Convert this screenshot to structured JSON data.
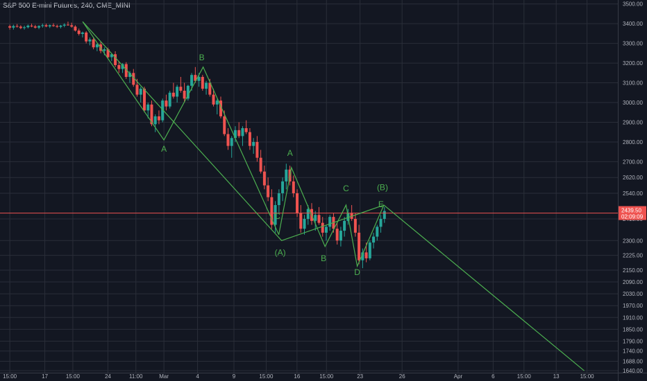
{
  "header": {
    "title": "S&P 500 E-mini Futures, 240, CME_MINI"
  },
  "colors": {
    "background": "#131722",
    "up": "#26a69a",
    "down": "#ef5350",
    "wave": "#4caf50",
    "price_line": "#ef5350",
    "grid": "#2a2e39",
    "text": "#b2b5be"
  },
  "chart_data": {
    "type": "candlestick",
    "title": "S&P 500 E-mini Futures, 240, CME_MINI",
    "y_ticks": [
      3500,
      3400,
      3300,
      3200,
      3100,
      3000,
      2900,
      2800,
      2700,
      2620,
      2540,
      2410,
      2300,
      2225,
      2150,
      2090,
      2030,
      1970,
      1910,
      1850,
      1790,
      1740,
      1688,
      1640
    ],
    "ylim": [
      1630,
      3520
    ],
    "x_ticks": [
      {
        "label": "15:00",
        "x": 0.0
      },
      {
        "label": "17",
        "x": 2.5
      },
      {
        "label": "15:00",
        "x": 4.5
      },
      {
        "label": "24",
        "x": 7.0
      },
      {
        "label": "11:00",
        "x": 9.0
      },
      {
        "label": "Mar",
        "x": 11.0
      },
      {
        "label": "4",
        "x": 13.4
      },
      {
        "label": "9",
        "x": 16.0
      },
      {
        "label": "15:00",
        "x": 18.3
      },
      {
        "label": "16",
        "x": 20.5
      },
      {
        "label": "15:00",
        "x": 22.6
      },
      {
        "label": "23",
        "x": 25.0
      },
      {
        "label": "26",
        "x": 28.0
      },
      {
        "label": "Apr",
        "x": 32.0
      },
      {
        "label": "6",
        "x": 34.5
      },
      {
        "label": "15:00",
        "x": 36.7
      },
      {
        "label": "13",
        "x": 39.0
      },
      {
        "label": "15:00",
        "x": 41.2
      }
    ],
    "xlim": [
      -0.7,
      43.4
    ],
    "current_price": {
      "value": 2439.5,
      "label": "2439.50",
      "countdown": "02:09:09"
    },
    "wave_lines": [
      {
        "name": "main",
        "points": [
          [
            5.2,
            3410
          ],
          [
            19.4,
            2300
          ],
          [
            26.7,
            2480
          ],
          [
            41.0,
            1640
          ]
        ]
      },
      {
        "name": "first-leg",
        "points": [
          [
            5.2,
            3410
          ],
          [
            11.0,
            2810
          ],
          [
            13.8,
            3180
          ],
          [
            19.2,
            2330
          ]
        ]
      },
      {
        "name": "second-leg",
        "points": [
          [
            19.2,
            2330
          ],
          [
            20.1,
            2670
          ],
          [
            22.5,
            2270
          ],
          [
            24.0,
            2480
          ],
          [
            24.8,
            2170
          ],
          [
            26.7,
            2480
          ]
        ]
      }
    ],
    "wave_labels": [
      {
        "text": "A",
        "x": 11.0,
        "y": 2750
      },
      {
        "text": "B",
        "x": 13.7,
        "y": 3215
      },
      {
        "text": "C",
        "x": 19.1,
        "y": 2410
      },
      {
        "text": "A",
        "x": 20.0,
        "y": 2730
      },
      {
        "text": "(A)",
        "x": 19.3,
        "y": 2225
      },
      {
        "text": "B",
        "x": 22.4,
        "y": 2195
      },
      {
        "text": "C",
        "x": 24.0,
        "y": 2550
      },
      {
        "text": "D",
        "x": 24.8,
        "y": 2125
      },
      {
        "text": "(B)",
        "x": 26.6,
        "y": 2555
      },
      {
        "text": "E",
        "x": 26.5,
        "y": 2470
      }
    ],
    "candles": [
      [
        3387,
        3395,
        3370,
        3380
      ],
      [
        3380,
        3395,
        3370,
        3388
      ],
      [
        3388,
        3398,
        3380,
        3385
      ],
      [
        3385,
        3392,
        3372,
        3378
      ],
      [
        3378,
        3390,
        3370,
        3382
      ],
      [
        3382,
        3396,
        3376,
        3390
      ],
      [
        3390,
        3400,
        3382,
        3386
      ],
      [
        3386,
        3394,
        3375,
        3380
      ],
      [
        3380,
        3392,
        3372,
        3388
      ],
      [
        3388,
        3400,
        3380,
        3392
      ],
      [
        3392,
        3400,
        3382,
        3386
      ],
      [
        3386,
        3396,
        3378,
        3392
      ],
      [
        3392,
        3402,
        3384,
        3388
      ],
      [
        3388,
        3395,
        3378,
        3384
      ],
      [
        3384,
        3394,
        3376,
        3390
      ],
      [
        3390,
        3402,
        3382,
        3395
      ],
      [
        3395,
        3410,
        3390,
        3392
      ],
      [
        3392,
        3405,
        3380,
        3385
      ],
      [
        3385,
        3392,
        3360,
        3365
      ],
      [
        3365,
        3375,
        3340,
        3348
      ],
      [
        3348,
        3360,
        3330,
        3355
      ],
      [
        3355,
        3362,
        3300,
        3310
      ],
      [
        3310,
        3330,
        3290,
        3320
      ],
      [
        3320,
        3330,
        3270,
        3280
      ],
      [
        3280,
        3300,
        3260,
        3295
      ],
      [
        3295,
        3310,
        3250,
        3262
      ],
      [
        3262,
        3280,
        3240,
        3270
      ],
      [
        3270,
        3278,
        3220,
        3230
      ],
      [
        3230,
        3250,
        3210,
        3245
      ],
      [
        3245,
        3260,
        3180,
        3190
      ],
      [
        3190,
        3210,
        3150,
        3170
      ],
      [
        3170,
        3200,
        3150,
        3195
      ],
      [
        3195,
        3205,
        3120,
        3130
      ],
      [
        3130,
        3160,
        3100,
        3150
      ],
      [
        3150,
        3170,
        3080,
        3090
      ],
      [
        3090,
        3120,
        3030,
        3040
      ],
      [
        3040,
        3080,
        3000,
        3070
      ],
      [
        3070,
        3080,
        2950,
        2960
      ],
      [
        2960,
        3000,
        2920,
        2990
      ],
      [
        2990,
        3010,
        2880,
        2890
      ],
      [
        2890,
        2940,
        2850,
        2930
      ],
      [
        2930,
        2960,
        2890,
        2910
      ],
      [
        2910,
        3020,
        2900,
        3010
      ],
      [
        3010,
        3040,
        2960,
        2980
      ],
      [
        2980,
        3060,
        2970,
        3050
      ],
      [
        3050,
        3100,
        3020,
        3030
      ],
      [
        3030,
        3090,
        3000,
        3080
      ],
      [
        3080,
        3130,
        3050,
        3060
      ],
      [
        3060,
        3100,
        3000,
        3020
      ],
      [
        3020,
        3090,
        3010,
        3085
      ],
      [
        3085,
        3150,
        3060,
        3140
      ],
      [
        3140,
        3180,
        3100,
        3110
      ],
      [
        3110,
        3150,
        3080,
        3130
      ],
      [
        3130,
        3140,
        3060,
        3070
      ],
      [
        3070,
        3110,
        3040,
        3100
      ],
      [
        3100,
        3120,
        3030,
        3040
      ],
      [
        3040,
        3070,
        2980,
        2990
      ],
      [
        2990,
        3020,
        2940,
        3010
      ],
      [
        3010,
        3030,
        2920,
        2930
      ],
      [
        2930,
        2960,
        2830,
        2840
      ],
      [
        2840,
        2870,
        2760,
        2780
      ],
      [
        2780,
        2830,
        2720,
        2820
      ],
      [
        2820,
        2880,
        2800,
        2860
      ],
      [
        2860,
        2900,
        2820,
        2830
      ],
      [
        2830,
        2880,
        2780,
        2870
      ],
      [
        2870,
        2910,
        2840,
        2850
      ],
      [
        2850,
        2870,
        2760,
        2780
      ],
      [
        2780,
        2820,
        2740,
        2800
      ],
      [
        2800,
        2830,
        2700,
        2720
      ],
      [
        2720,
        2760,
        2640,
        2650
      ],
      [
        2650,
        2680,
        2560,
        2580
      ],
      [
        2580,
        2620,
        2500,
        2520
      ],
      [
        2520,
        2560,
        2360,
        2380
      ],
      [
        2380,
        2500,
        2340,
        2480
      ],
      [
        2480,
        2560,
        2440,
        2540
      ],
      [
        2540,
        2620,
        2500,
        2600
      ],
      [
        2600,
        2690,
        2560,
        2660
      ],
      [
        2660,
        2680,
        2580,
        2600
      ],
      [
        2600,
        2630,
        2520,
        2540
      ],
      [
        2540,
        2560,
        2420,
        2440
      ],
      [
        2440,
        2480,
        2340,
        2360
      ],
      [
        2360,
        2430,
        2330,
        2410
      ],
      [
        2410,
        2480,
        2380,
        2460
      ],
      [
        2460,
        2490,
        2380,
        2400
      ],
      [
        2400,
        2450,
        2350,
        2430
      ],
      [
        2430,
        2470,
        2380,
        2390
      ],
      [
        2390,
        2420,
        2320,
        2340
      ],
      [
        2340,
        2380,
        2300,
        2370
      ],
      [
        2370,
        2430,
        2350,
        2420
      ],
      [
        2420,
        2440,
        2340,
        2360
      ],
      [
        2360,
        2400,
        2280,
        2300
      ],
      [
        2300,
        2370,
        2270,
        2350
      ],
      [
        2350,
        2420,
        2320,
        2400
      ],
      [
        2400,
        2460,
        2380,
        2440
      ],
      [
        2440,
        2480,
        2400,
        2410
      ],
      [
        2410,
        2440,
        2320,
        2340
      ],
      [
        2340,
        2380,
        2180,
        2200
      ],
      [
        2200,
        2260,
        2160,
        2240
      ],
      [
        2240,
        2290,
        2190,
        2210
      ],
      [
        2210,
        2300,
        2200,
        2290
      ],
      [
        2290,
        2340,
        2260,
        2320
      ],
      [
        2320,
        2380,
        2300,
        2370
      ],
      [
        2370,
        2430,
        2340,
        2410
      ],
      [
        2410,
        2470,
        2390,
        2450
      ]
    ]
  }
}
